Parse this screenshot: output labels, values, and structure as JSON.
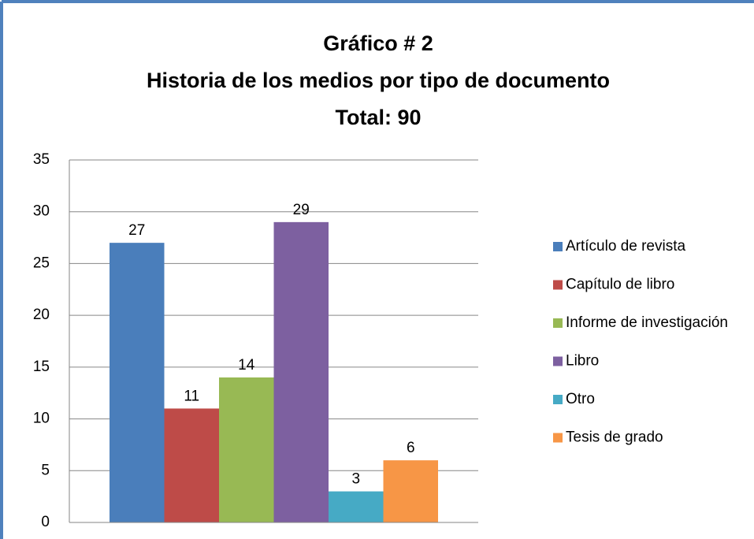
{
  "chart_data": {
    "type": "bar",
    "title": [
      "Gráfico # 2",
      "Historia de los medios por tipo de documento",
      "Total: 90"
    ],
    "categories": [
      null
    ],
    "series": [
      {
        "name": "Artículo de revista",
        "color": "#4a7ebb",
        "values": [
          27
        ]
      },
      {
        "name": "Capítulo de libro",
        "color": "#be4b48",
        "values": [
          11
        ]
      },
      {
        "name": "Informe de investigación",
        "color": "#98b954",
        "values": [
          14
        ]
      },
      {
        "name": "Libro",
        "color": "#7d60a0",
        "values": [
          29
        ]
      },
      {
        "name": "Otro",
        "color": "#46aac5",
        "values": [
          3
        ]
      },
      {
        "name": "Tesis de grado",
        "color": "#f79646",
        "values": [
          6
        ]
      }
    ],
    "ylim": [
      0,
      35
    ],
    "yticks": [
      0,
      5,
      10,
      15,
      20,
      25,
      30,
      35
    ],
    "grid": true,
    "legend": "right"
  }
}
